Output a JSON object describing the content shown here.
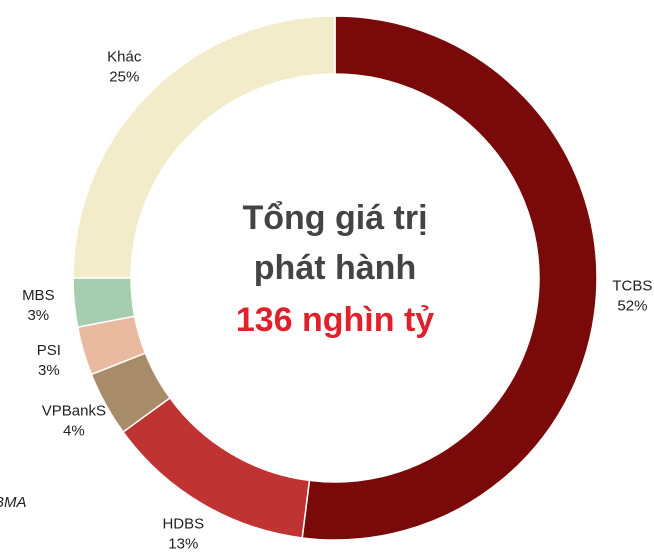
{
  "chart_data": {
    "type": "donut",
    "categories": [
      "TCBS",
      "HDBS",
      "VPBankS",
      "PSI",
      "MBS",
      "Khác"
    ],
    "values": [
      52,
      13,
      4,
      3,
      3,
      25
    ],
    "value_labels": [
      "52%",
      "13%",
      "4%",
      "3%",
      "3%",
      "25%"
    ],
    "colors": [
      "#7a0909",
      "#c03333",
      "#a88b68",
      "#e9b9a0",
      "#a7cdb0",
      "#f3eccb"
    ],
    "center_text": [
      "Tổng giá trị",
      "phát hành"
    ],
    "center_value": "136 nghìn tỷ",
    "source": "BMA"
  }
}
